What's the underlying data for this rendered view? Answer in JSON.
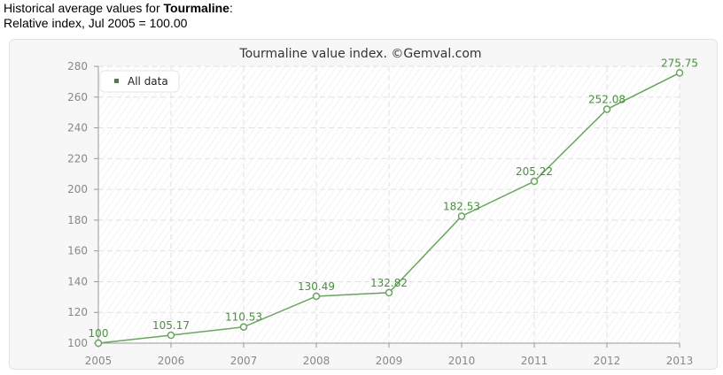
{
  "intro": {
    "prefix": "Historical average values for ",
    "gem": "Tourmaline",
    "suffix": ":",
    "line2": "Relative index, Jul 2005 = 100.00"
  },
  "colors": {
    "series": "#6aa560",
    "label": "#4a8f3f",
    "legend_marker": "#3a8a3a",
    "grid": "#e2e2e2",
    "axis": "#999999"
  },
  "chart_data": {
    "type": "line",
    "title": "Tourmaline value index. ©Gemval.com",
    "xlabel": "",
    "ylabel": "",
    "x": [
      "2005",
      "2006",
      "2007",
      "2008",
      "2009",
      "2010",
      "2011",
      "2012",
      "2013"
    ],
    "series": [
      {
        "name": "All data",
        "values": [
          100,
          105.17,
          110.53,
          130.49,
          132.82,
          182.53,
          205.22,
          252.08,
          275.75
        ],
        "labels": [
          "100",
          "105.17",
          "110.53",
          "130.49",
          "132.82",
          "182.53",
          "205.22",
          "252.08",
          "275.75"
        ]
      }
    ],
    "ylim": [
      100,
      280
    ],
    "yticks": [
      "100",
      "120",
      "140",
      "160",
      "180",
      "200",
      "220",
      "240",
      "260",
      "280"
    ],
    "grid": true,
    "legend_position": "top-left"
  }
}
